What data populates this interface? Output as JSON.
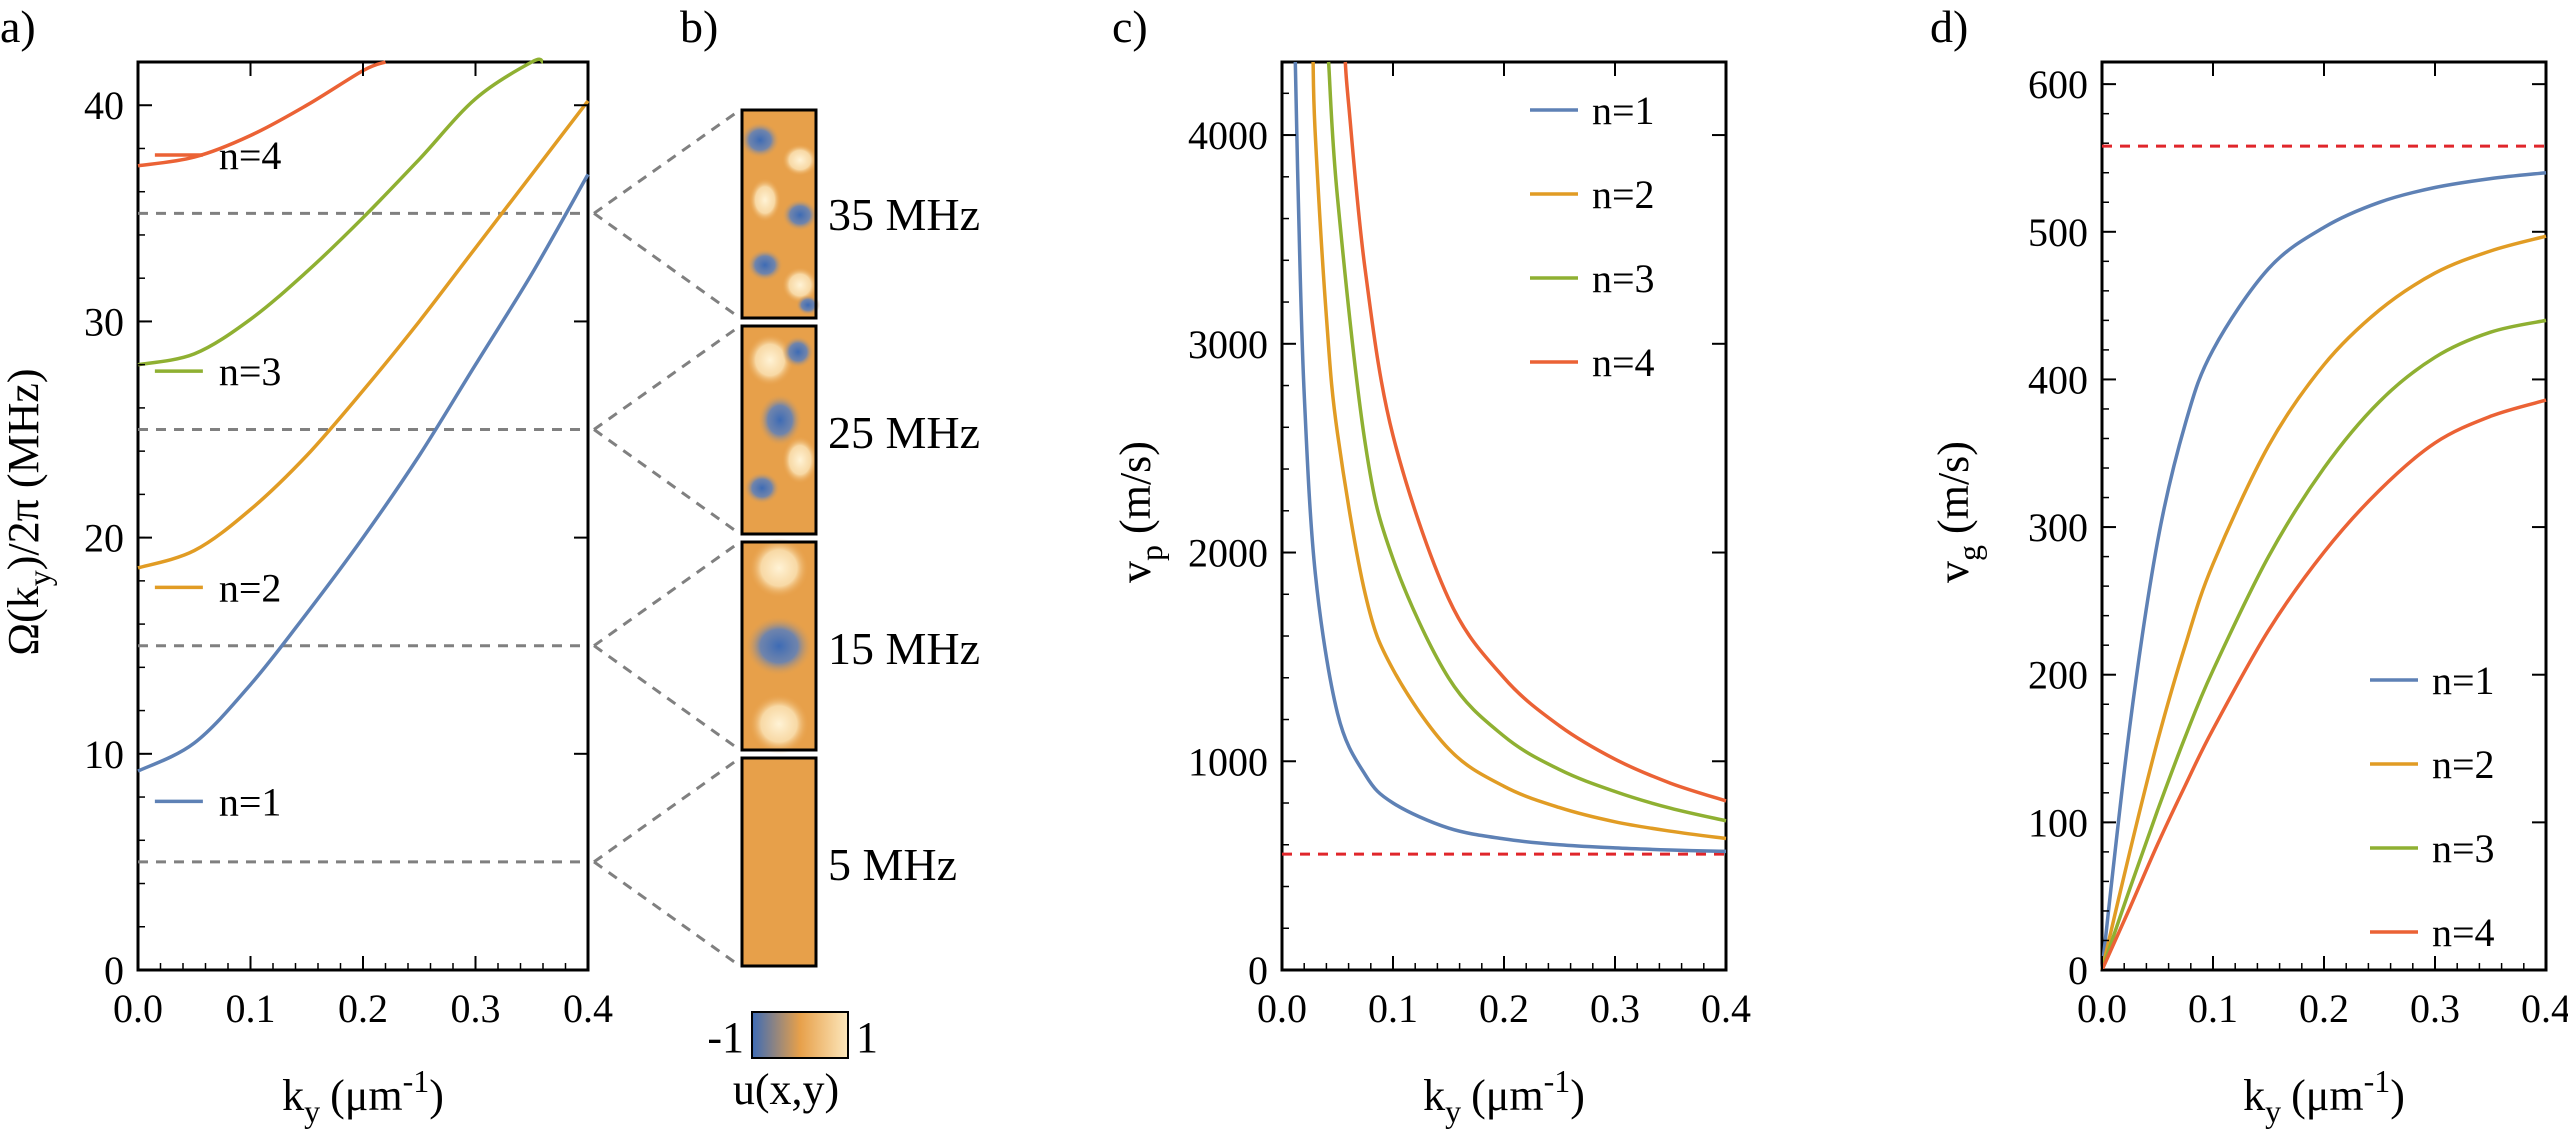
{
  "colors": {
    "n1": "#5e81b5",
    "n2": "#e19c24",
    "n3": "#8fb032",
    "n4": "#eb6235",
    "guide": "#808080",
    "reference": "#e0262b",
    "mode_high": "#fce7bc",
    "mode_mid": "#e7a04a",
    "mode_low": "#3d6bb5"
  },
  "chart_data": [
    {
      "id": "a",
      "panel_label": "a)",
      "type": "line",
      "xlabel": "k",
      "xlabel_sub": "y",
      "xlabel_unit": "(μm",
      "xlabel_unit_sup": "-1",
      "xlabel_close": ")",
      "ylabel": "Ω(k",
      "ylabel_sub": "y",
      "ylabel_rest": ")/2π (MHz)",
      "xlim": [
        0,
        0.4
      ],
      "ylim": [
        0,
        42
      ],
      "xticks": [
        "0.0",
        "0.1",
        "0.2",
        "0.3",
        "0.4"
      ],
      "yticks": [
        "0",
        "10",
        "20",
        "30",
        "40"
      ],
      "xtick_values": [
        0,
        0.1,
        0.2,
        0.3,
        0.4
      ],
      "ytick_values": [
        0,
        10,
        20,
        30,
        40
      ],
      "series": [
        {
          "name": "n=1",
          "x": [
            0,
            0.05,
            0.1,
            0.15,
            0.2,
            0.25,
            0.3,
            0.35,
            0.4
          ],
          "values": [
            9.2,
            10.5,
            13.2,
            16.5,
            20.0,
            23.8,
            28.0,
            32.2,
            36.8
          ]
        },
        {
          "name": "n=2",
          "x": [
            0,
            0.05,
            0.1,
            0.15,
            0.2,
            0.25,
            0.3,
            0.35,
            0.4
          ],
          "values": [
            18.6,
            19.4,
            21.3,
            23.8,
            26.8,
            30.0,
            33.4,
            36.8,
            40.2
          ]
        },
        {
          "name": "n=3",
          "x": [
            0,
            0.05,
            0.1,
            0.15,
            0.2,
            0.25,
            0.3,
            0.35,
            0.36
          ],
          "values": [
            28.0,
            28.5,
            30.1,
            32.3,
            34.8,
            37.5,
            40.3,
            42.0,
            42.0
          ]
        },
        {
          "name": "n=4",
          "x": [
            0,
            0.05,
            0.1,
            0.15,
            0.2,
            0.22
          ],
          "values": [
            37.2,
            37.6,
            38.6,
            40.0,
            41.6,
            42.0
          ]
        }
      ],
      "guides": [
        5,
        15,
        25,
        35
      ],
      "legend_labels": [
        {
          "text": "n=1",
          "at": [
            0.015,
            7.8
          ]
        },
        {
          "text": "n=2",
          "at": [
            0.015,
            17.7
          ]
        },
        {
          "text": "n=3",
          "at": [
            0.015,
            27.7
          ]
        },
        {
          "text": "n=4",
          "at": [
            0.015,
            37.7
          ]
        }
      ]
    },
    {
      "id": "b",
      "panel_label": "b)",
      "type": "heatmap",
      "modes": [
        {
          "label": "35 MHz",
          "pattern": "complex"
        },
        {
          "label": "25 MHz",
          "pattern": "three-lobe"
        },
        {
          "label": "15 MHz",
          "pattern": "center"
        },
        {
          "label": "5 MHz",
          "pattern": "uniform"
        }
      ],
      "colorbar": {
        "min_label": "-1",
        "max_label": "1",
        "caption": "u(x,y)"
      }
    },
    {
      "id": "c",
      "panel_label": "c)",
      "type": "line",
      "xlabel": "k",
      "xlabel_sub": "y",
      "xlabel_unit": "(μm",
      "xlabel_unit_sup": "-1",
      "xlabel_close": ")",
      "ylabel": "v",
      "ylabel_sub": "p",
      "ylabel_rest": " (m/s)",
      "xlim": [
        0,
        0.4
      ],
      "ylim": [
        0,
        4350
      ],
      "xticks": [
        "0.0",
        "0.1",
        "0.2",
        "0.3",
        "0.4"
      ],
      "yticks": [
        "0",
        "1000",
        "2000",
        "3000",
        "4000"
      ],
      "xtick_values": [
        0,
        0.1,
        0.2,
        0.3,
        0.4
      ],
      "ytick_values": [
        0,
        1000,
        2000,
        3000,
        4000
      ],
      "series": [
        {
          "name": "n=1",
          "x": [
            0.012,
            0.015,
            0.02,
            0.03,
            0.05,
            0.075,
            0.1,
            0.15,
            0.2,
            0.25,
            0.3,
            0.35,
            0.4
          ],
          "values": [
            4350,
            3620,
            2760,
            1900,
            1230,
            935,
            800,
            680,
            628,
            600,
            585,
            575,
            568
          ]
        },
        {
          "name": "n=2",
          "x": [
            0.028,
            0.03,
            0.04,
            0.05,
            0.075,
            0.1,
            0.15,
            0.2,
            0.25,
            0.3,
            0.35,
            0.4
          ],
          "values": [
            4350,
            4000,
            3130,
            2570,
            1800,
            1440,
            1060,
            880,
            778,
            710,
            665,
            630
          ]
        },
        {
          "name": "n=3",
          "x": [
            0.042,
            0.05,
            0.075,
            0.1,
            0.15,
            0.2,
            0.25,
            0.3,
            0.35,
            0.4
          ],
          "values": [
            4350,
            3700,
            2520,
            1970,
            1400,
            1120,
            960,
            855,
            775,
            715
          ]
        },
        {
          "name": "n=4",
          "x": [
            0.057,
            0.06,
            0.075,
            0.1,
            0.15,
            0.2,
            0.25,
            0.3,
            0.35,
            0.4
          ],
          "values": [
            4350,
            4150,
            3350,
            2560,
            1780,
            1400,
            1170,
            1010,
            895,
            810
          ]
        }
      ],
      "reference_line": 555,
      "legend": [
        "n=1",
        "n=2",
        "n=3",
        "n=4"
      ],
      "legend_position": "top-right"
    },
    {
      "id": "d",
      "panel_label": "d)",
      "type": "line",
      "xlabel": "k",
      "xlabel_sub": "y",
      "xlabel_unit": "(μm",
      "xlabel_unit_sup": "-1",
      "xlabel_close": ")",
      "ylabel": "v",
      "ylabel_sub": "g",
      "ylabel_rest": " (m/s)",
      "xlim": [
        0,
        0.4
      ],
      "ylim": [
        0,
        615
      ],
      "xticks": [
        "0.0",
        "0.1",
        "0.2",
        "0.3",
        "0.4"
      ],
      "yticks": [
        "0",
        "100",
        "200",
        "300",
        "400",
        "500",
        "600"
      ],
      "xtick_values": [
        0,
        0.1,
        0.2,
        0.3,
        0.4
      ],
      "ytick_values": [
        0,
        100,
        200,
        300,
        400,
        500,
        600
      ],
      "series": [
        {
          "name": "n=1",
          "x": [
            0,
            0.025,
            0.05,
            0.075,
            0.1,
            0.15,
            0.2,
            0.25,
            0.3,
            0.35,
            0.4
          ],
          "values": [
            0,
            165,
            290,
            370,
            420,
            475,
            503,
            520,
            530,
            536,
            540
          ]
        },
        {
          "name": "n=2",
          "x": [
            0,
            0.025,
            0.05,
            0.075,
            0.1,
            0.15,
            0.2,
            0.25,
            0.3,
            0.35,
            0.4
          ],
          "values": [
            0,
            80,
            155,
            220,
            275,
            355,
            410,
            447,
            472,
            487,
            497
          ]
        },
        {
          "name": "n=3",
          "x": [
            0,
            0.025,
            0.05,
            0.075,
            0.1,
            0.15,
            0.2,
            0.25,
            0.3,
            0.35,
            0.4
          ],
          "values": [
            0,
            55,
            108,
            158,
            203,
            280,
            340,
            385,
            415,
            432,
            440
          ]
        },
        {
          "name": "n=4",
          "x": [
            0,
            0.025,
            0.05,
            0.075,
            0.1,
            0.15,
            0.2,
            0.25,
            0.3,
            0.35,
            0.4
          ],
          "values": [
            0,
            42,
            85,
            125,
            163,
            230,
            283,
            325,
            357,
            375,
            386
          ]
        }
      ],
      "reference_line": 558,
      "legend": [
        "n=1",
        "n=2",
        "n=3",
        "n=4"
      ],
      "legend_position": "bottom-right"
    }
  ]
}
